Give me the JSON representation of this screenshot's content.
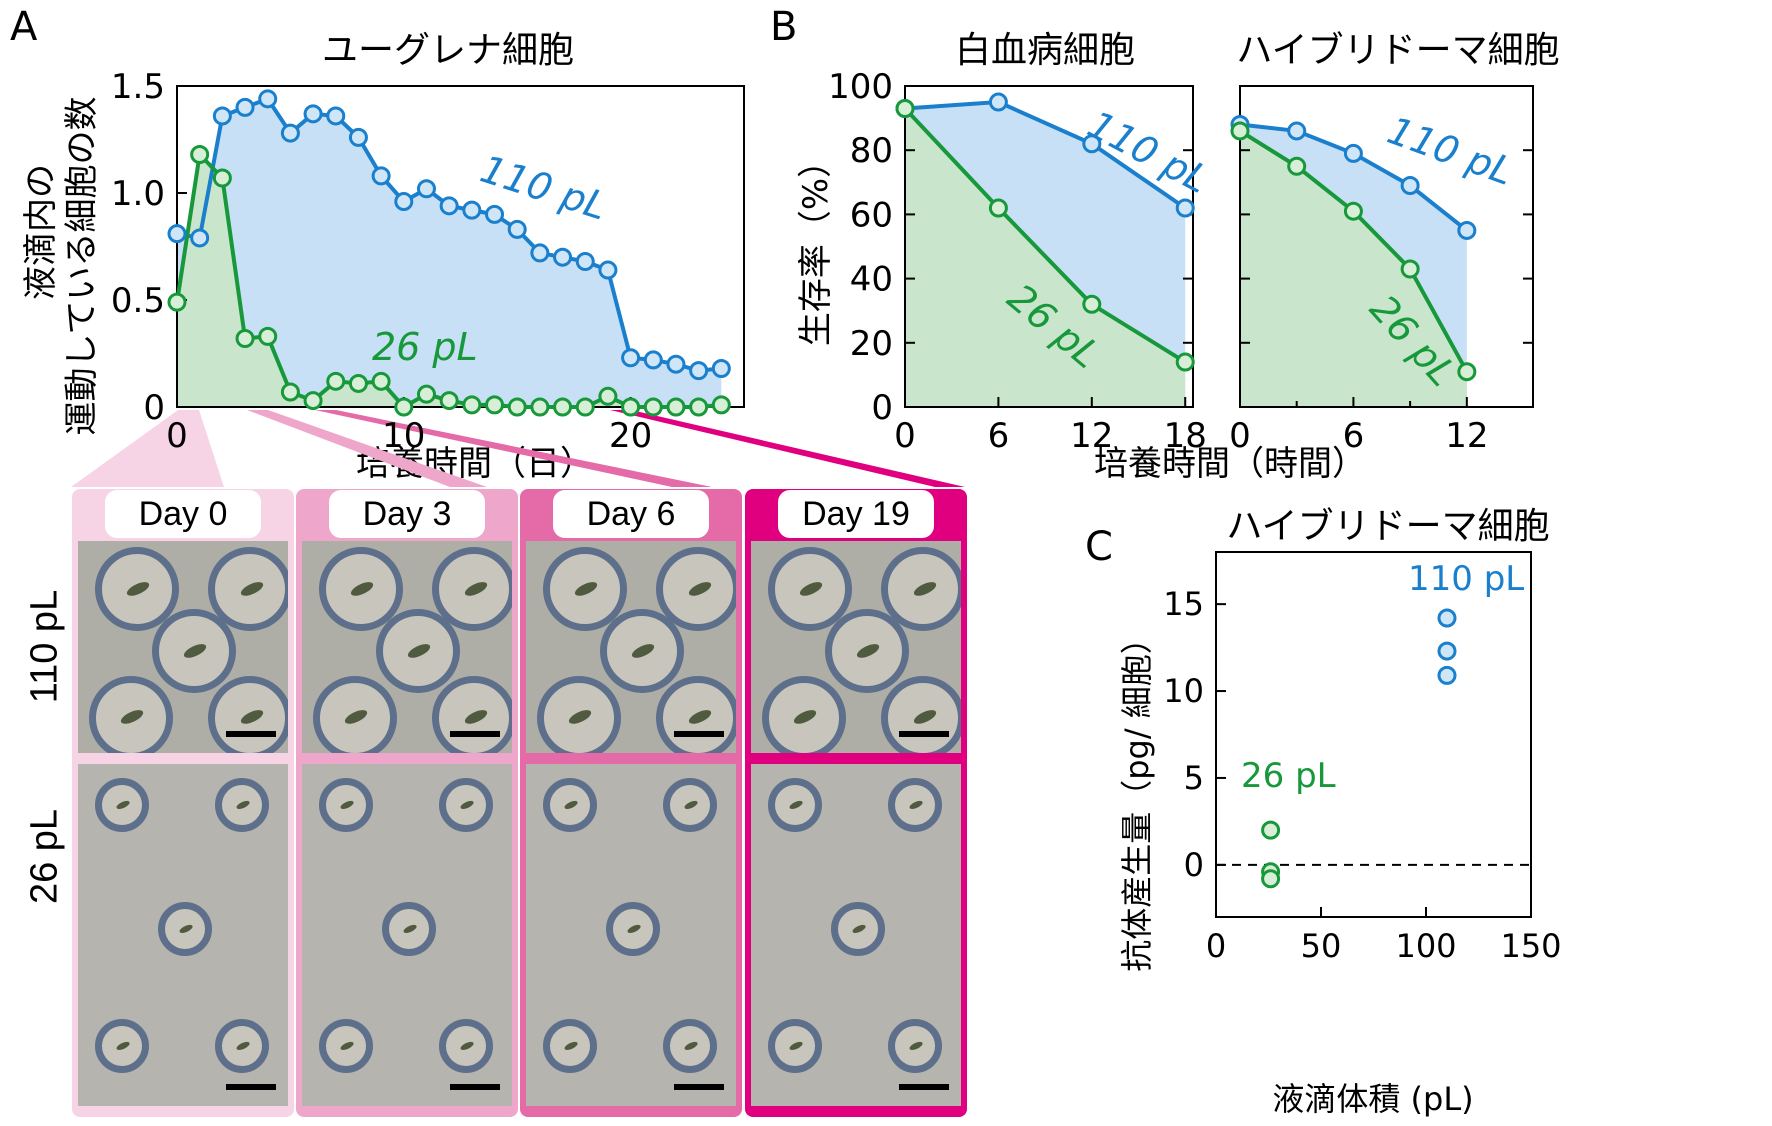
{
  "panels": {
    "A": {
      "letter": "A",
      "title": "ユーグレナ細胞",
      "ylabel_line1": "液滴内の",
      "ylabel_line2": "運動している細胞の数",
      "xlabel": "培養時間（日）"
    },
    "B": {
      "letter": "B",
      "title_left": "白血病細胞",
      "title_right": "ハイブリドーマ細胞",
      "ylabel": "生存率（%）",
      "xlabel": "培養時間（時間）"
    },
    "C": {
      "letter": "C",
      "title": "ハイブリドーマ細胞",
      "ylabel": "抗体産生量（pg/ 細胞）",
      "xlabel": "液滴体積 (pL)"
    }
  },
  "micrographs": {
    "days": [
      "Day 0",
      "Day 3",
      "Day 6",
      "Day 19"
    ],
    "rows": [
      "110 pL",
      "26 pL"
    ],
    "frame_colors": [
      "#f7d3e6",
      "#efa6cb",
      "#e56aa8",
      "#e0007f"
    ]
  },
  "colors": {
    "blue": "#1a7fcc",
    "green": "#17983a",
    "blue_fill": "#c7e0f5",
    "green_fill": "#c9e6cc"
  },
  "chart_data": [
    {
      "id": "A",
      "type": "line",
      "title": "ユーグレナ細胞",
      "xlabel": "培養時間（日）",
      "ylabel": "液滴内の運動している細胞の数",
      "xlim": [
        0,
        25
      ],
      "ylim": [
        0,
        1.5
      ],
      "xticks": [
        0,
        10,
        20
      ],
      "yticks": [
        0,
        0.5,
        1.0,
        1.5
      ],
      "ytick_labels": [
        "0",
        "0.5",
        "1.0",
        "1.5"
      ],
      "series": [
        {
          "name": "110 pL",
          "color": "#1a7fcc",
          "x": [
            0,
            1,
            2,
            3,
            4,
            5,
            6,
            7,
            8,
            9,
            10,
            11,
            12,
            13,
            14,
            15,
            16,
            17,
            18,
            19,
            20,
            21,
            22,
            23,
            24
          ],
          "y": [
            0.81,
            0.79,
            1.36,
            1.4,
            1.44,
            1.28,
            1.37,
            1.36,
            1.26,
            1.08,
            0.96,
            1.02,
            0.94,
            0.92,
            0.9,
            0.83,
            0.72,
            0.7,
            0.68,
            0.64,
            0.23,
            0.22,
            0.2,
            0.17,
            0.18
          ]
        },
        {
          "name": "26 pL",
          "color": "#17983a",
          "x": [
            0,
            1,
            2,
            3,
            4,
            5,
            6,
            7,
            8,
            9,
            10,
            11,
            12,
            13,
            14,
            15,
            16,
            17,
            18,
            19,
            20,
            21,
            22,
            23,
            24
          ],
          "y": [
            0.49,
            1.18,
            1.07,
            0.32,
            0.33,
            0.07,
            0.03,
            0.12,
            0.11,
            0.12,
            0.0,
            0.06,
            0.03,
            0.01,
            0.01,
            0.0,
            0.0,
            0.0,
            0.0,
            0.05,
            0.0,
            0.0,
            0.0,
            0.0,
            0.01
          ]
        }
      ]
    },
    {
      "id": "B-left",
      "type": "line",
      "title": "白血病細胞",
      "xlabel": "培養時間（時間）",
      "ylabel": "生存率（%）",
      "xlim": [
        0,
        18.5
      ],
      "ylim": [
        0,
        100
      ],
      "xticks": [
        0,
        6,
        12,
        18
      ],
      "yticks": [
        0,
        20,
        40,
        60,
        80,
        100
      ],
      "series": [
        {
          "name": "110 pL",
          "color": "#1a7fcc",
          "x": [
            0,
            6,
            12,
            18
          ],
          "y": [
            93,
            95,
            82,
            62
          ]
        },
        {
          "name": "26 pL",
          "color": "#17983a",
          "x": [
            0,
            6,
            12,
            18
          ],
          "y": [
            93,
            62,
            32,
            14
          ]
        }
      ]
    },
    {
      "id": "B-right",
      "type": "line",
      "title": "ハイブリドーマ細胞",
      "xlabel": "培養時間（時間）",
      "ylabel": "生存率（%）",
      "xlim": [
        0,
        15.5
      ],
      "ylim": [
        0,
        100
      ],
      "xticks": [
        0,
        6,
        12
      ],
      "series": [
        {
          "name": "110 pL",
          "color": "#1a7fcc",
          "x": [
            0,
            3,
            6,
            9,
            12
          ],
          "y": [
            88,
            86,
            79,
            69,
            55
          ]
        },
        {
          "name": "26 pL",
          "color": "#17983a",
          "x": [
            0,
            3,
            6,
            9,
            12
          ],
          "y": [
            86,
            75,
            61,
            43,
            11
          ]
        }
      ]
    },
    {
      "id": "C",
      "type": "scatter",
      "title": "ハイブリドーマ細胞",
      "xlabel": "液滴体積 (pL)",
      "ylabel": "抗体産生量（pg/ 細胞）",
      "xlim": [
        0,
        150
      ],
      "ylim": [
        -3,
        18
      ],
      "xticks": [
        0,
        50,
        100,
        150
      ],
      "yticks": [
        0,
        5,
        10,
        15
      ],
      "series": [
        {
          "name": "110 pL",
          "color": "#1a7fcc",
          "x": [
            110,
            110,
            110
          ],
          "y": [
            14.2,
            12.3,
            10.9
          ]
        },
        {
          "name": "26 pL",
          "color": "#17983a",
          "x": [
            26,
            26,
            26
          ],
          "y": [
            2.0,
            -0.4,
            -0.8
          ]
        }
      ]
    }
  ]
}
